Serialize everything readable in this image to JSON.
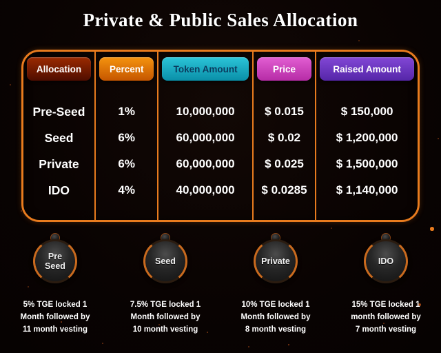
{
  "title": "Private & Public Sales Allocation",
  "accent_color": "#e87b1e",
  "table": {
    "columns": [
      {
        "key": "allocation",
        "label": "Allocation",
        "grad_from": "#9b2a00",
        "grad_to": "#4f0d00",
        "text_color": "#ffffff"
      },
      {
        "key": "percent",
        "label": "Percent",
        "grad_from": "#f5930e",
        "grad_to": "#c55600",
        "text_color": "#ffffff"
      },
      {
        "key": "token_amount",
        "label": "Token Amount",
        "grad_from": "#2cc4d8",
        "grad_to": "#0a8fa8",
        "text_color": "#0b3b5e"
      },
      {
        "key": "price",
        "label": "Price",
        "grad_from": "#e25ed2",
        "grad_to": "#b62ca6",
        "text_color": "#ffffff"
      },
      {
        "key": "raised_amount",
        "label": "Raised Amount",
        "grad_from": "#8247d6",
        "grad_to": "#5526a8",
        "text_color": "#ffffff"
      }
    ],
    "rows": [
      {
        "allocation": "Pre-Seed",
        "percent": "1%",
        "token_amount": "10,000,000",
        "price": "$ 0.015",
        "raised_amount": "$ 150,000"
      },
      {
        "allocation": "Seed",
        "percent": "6%",
        "token_amount": "60,000,000",
        "price": "$ 0.02",
        "raised_amount": "$ 1,200,000"
      },
      {
        "allocation": "Private",
        "percent": "6%",
        "token_amount": "60,000,000",
        "price": "$ 0.025",
        "raised_amount": "$ 1,500,000"
      },
      {
        "allocation": "IDO",
        "percent": "4%",
        "token_amount": "40,000,000",
        "price": "$ 0.0285",
        "raised_amount": "$ 1,140,000"
      }
    ]
  },
  "badges": [
    {
      "label": "Pre\nSeed",
      "vesting": "5% TGE locked 1\nMonth followed by\n11 month vesting"
    },
    {
      "label": "Seed",
      "vesting": "7.5% TGE locked 1\nMonth followed by\n10 month vesting"
    },
    {
      "label": "Private",
      "vesting": "10% TGE locked 1\nMonth followed by\n8 month vesting"
    },
    {
      "label": "IDO",
      "vesting": "15% TGE locked 1\nmonth followed by\n7 month vesting"
    }
  ],
  "chart_data": {
    "type": "table",
    "title": "Private & Public Sales Allocation",
    "columns": [
      "Allocation",
      "Percent",
      "Token Amount",
      "Price",
      "Raised Amount"
    ],
    "rows": [
      [
        "Pre-Seed",
        "1%",
        "10,000,000",
        "$ 0.015",
        "$ 150,000"
      ],
      [
        "Seed",
        "6%",
        "60,000,000",
        "$ 0.02",
        "$ 1,200,000"
      ],
      [
        "Private",
        "6%",
        "60,000,000",
        "$ 0.025",
        "$ 1,500,000"
      ],
      [
        "IDO",
        "4%",
        "40,000,000",
        "$ 0.0285",
        "$ 1,140,000"
      ]
    ],
    "notes": [
      "Pre Seed: 5% TGE locked 1 Month followed by 11 month vesting",
      "Seed: 7.5% TGE locked 1 Month followed by 10 month vesting",
      "Private: 10% TGE locked 1 Month followed by 8 month vesting",
      "IDO: 15% TGE locked 1 month followed by 7 month vesting"
    ]
  }
}
